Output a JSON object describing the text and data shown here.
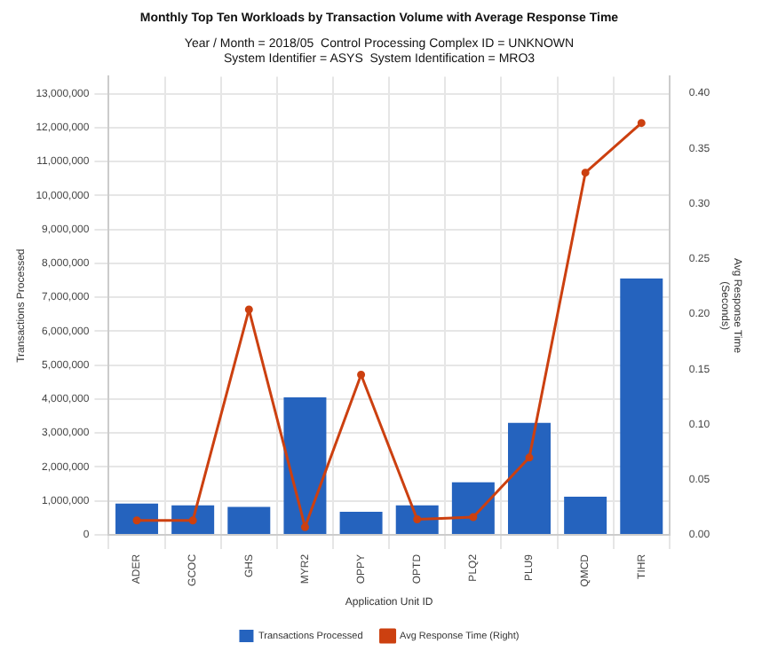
{
  "chart_data": {
    "type": "bar",
    "title": "Monthly Top Ten Workloads by Transaction Volume with Average Response Time",
    "subtitle": "Year / Month = 2018/05  Control Processing Complex ID = UNKNOWN\nSystem Identifier = ASYS  System Identification = MRO3",
    "xlabel": "Application Unit ID",
    "ylabel": "Transactions Processed",
    "y2label": "Avg Response Time\n(Seconds)",
    "categories": [
      "ADER",
      "GCOC",
      "GHS",
      "MYR2",
      "OPPY",
      "OPTD",
      "PLQ2",
      "PLU9",
      "QMCD",
      "TIHR"
    ],
    "series": [
      {
        "name": "Transactions Processed",
        "color": "#2563be",
        "values": [
          920000,
          870000,
          820000,
          4050000,
          680000,
          870000,
          1550000,
          3300000,
          1120000,
          7550000
        ]
      },
      {
        "name": "Avg Response Time (Right)",
        "type": "line",
        "axis": "y2",
        "color": "#cc4010",
        "marker": "circle",
        "values": [
          0.013,
          0.013,
          0.204,
          0.007,
          0.145,
          0.014,
          0.016,
          0.07,
          0.328,
          0.373
        ]
      }
    ],
    "ylim": [
      0,
      13500000
    ],
    "yticks": [
      {
        "value": 0,
        "label": "0"
      },
      {
        "value": 1000000,
        "label": "1,000,000"
      },
      {
        "value": 2000000,
        "label": "2,000,000"
      },
      {
        "value": 3000000,
        "label": "3,000,000"
      },
      {
        "value": 4000000,
        "label": "4,000,000"
      },
      {
        "value": 5000000,
        "label": "5,000,000"
      },
      {
        "value": 6000000,
        "label": "6,000,000"
      },
      {
        "value": 7000000,
        "label": "7,000,000"
      },
      {
        "value": 8000000,
        "label": "8,000,000"
      },
      {
        "value": 9000000,
        "label": "9,000,000"
      },
      {
        "value": 10000000,
        "label": "10,000,000"
      },
      {
        "value": 11000000,
        "label": "11,000,000"
      },
      {
        "value": 12000000,
        "label": "12,000,000"
      },
      {
        "value": 13000000,
        "label": "13,000,000"
      }
    ],
    "y2lim": [
      0,
      0.415
    ],
    "y2ticks": [
      {
        "value": 0,
        "label": "0.00"
      },
      {
        "value": 0.05,
        "label": "0.05"
      },
      {
        "value": 0.1,
        "label": "0.10"
      },
      {
        "value": 0.15,
        "label": "0.15"
      },
      {
        "value": 0.2,
        "label": "0.20"
      },
      {
        "value": 0.25,
        "label": "0.25"
      },
      {
        "value": 0.3,
        "label": "0.30"
      },
      {
        "value": 0.35,
        "label": "0.35"
      },
      {
        "value": 0.4,
        "label": "0.40"
      }
    ],
    "grid": true,
    "legend": "bottom"
  }
}
